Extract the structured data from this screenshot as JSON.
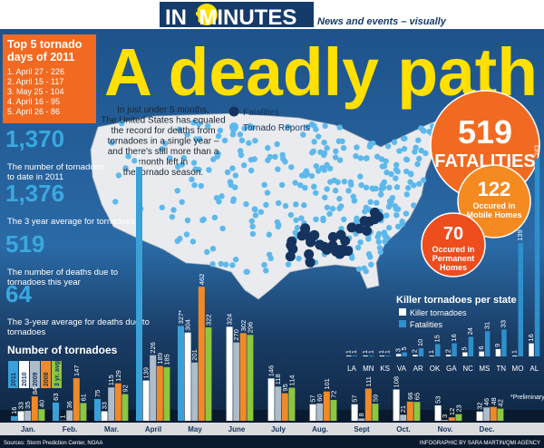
{
  "header": {
    "brand": [
      "IN",
      "5",
      "MINUTES"
    ],
    "tagline": "News and events – visually"
  },
  "title": "A deadly path",
  "top5": {
    "title": [
      "Top 5 tornado",
      "days of 2011"
    ],
    "items": [
      "1. April 27 - 226",
      "2. April 15 - 117",
      "3. May 25 - 104",
      "4. April 16 - 95",
      "5. April 26 - 86"
    ]
  },
  "intro": [
    "In just under 5 months,",
    "The United States has equaled",
    "the record for deaths from",
    "tornadoes in a single year –",
    "and there's still more than a",
    "month left in",
    "the tornado season."
  ],
  "map_legend": [
    "Fatalities",
    "Tornado Reports"
  ],
  "stats": [
    {
      "value": "1,370",
      "text": [
        "The number of tornadoes",
        "to date in 2011"
      ]
    },
    {
      "value": "1,376",
      "text": [
        "The 3 year average for tornadoes"
      ]
    },
    {
      "value": "519",
      "text": [
        "The number of deaths due to",
        "tornadoes this year"
      ]
    },
    {
      "value": "64",
      "text": [
        "The 3-year average for deaths due to",
        "tornadoes"
      ]
    }
  ],
  "bubbles": [
    {
      "value": "519",
      "text": [
        "FATALITIES"
      ]
    },
    {
      "value": "122",
      "text": [
        "Occured in",
        "Mobile Homes"
      ]
    },
    {
      "value": "70",
      "text": [
        "Occured in",
        "Permanent",
        "Homes"
      ]
    }
  ],
  "chart_data": [
    {
      "type": "bar",
      "title": "Killer tornadoes per state",
      "categories": [
        "LA",
        "MN",
        "KS",
        "VA",
        "AR",
        "OK",
        "GA",
        "NC",
        "MS",
        "TN",
        "MO",
        "AL"
      ],
      "series": [
        {
          "name": "Killer tornadoes",
          "color": "#ffffff",
          "values": [
            1,
            1,
            1,
            3,
            2,
            1,
            2,
            5,
            6,
            9,
            1,
            16
          ]
        },
        {
          "name": "Fatalities",
          "color": "#2f8fcb",
          "values": [
            1,
            1,
            1,
            5,
            10,
            15,
            16,
            24,
            31,
            33,
            139,
            243
          ]
        }
      ]
    },
    {
      "type": "bar",
      "title": "Number of tornadoes",
      "note": "*Preliminary Numbers",
      "categories": [
        "Jan.",
        "Feb.",
        "Mar.",
        "April",
        "May",
        "June",
        "July",
        "Aug.",
        "Sept",
        "Oct.",
        "Nov.",
        "Dec."
      ],
      "series": [
        {
          "name": "2011",
          "color": "#3aa0d8",
          "values": [
            16,
            63,
            75,
            875,
            327,
            null,
            null,
            null,
            null,
            null,
            null,
            null
          ],
          "value_labels": [
            "16",
            "63",
            "75",
            "875*",
            "327*",
            null,
            null,
            null,
            null,
            null,
            null,
            null
          ]
        },
        {
          "name": "2010",
          "color": "#ffffff",
          "values": [
            33,
            1,
            33,
            139,
            304,
            324,
            146,
            57,
            57,
            108,
            53,
            32
          ]
        },
        {
          "name": "2009",
          "color": "#aebdca",
          "values": [
            35,
            36,
            115,
            226,
            201,
            270,
            118,
            60,
            8,
            21,
            3,
            46
          ]
        },
        {
          "name": "2008",
          "color": "#f08a28",
          "values": [
            84,
            147,
            129,
            189,
            462,
            302,
            95,
            101,
            111,
            66,
            12,
            48
          ]
        },
        {
          "name": "3 yr. avg",
          "color": "#8dc63f",
          "values": [
            40,
            61,
            92,
            185,
            322,
            296,
            114,
            72,
            59,
            65,
            23,
            42
          ]
        }
      ]
    }
  ],
  "footer": {
    "source": "Sources: Storm Prediction Center, NOAA",
    "credit": "INFOGRAPHIC BY SARA MARTIN/QMI AGENCY"
  }
}
